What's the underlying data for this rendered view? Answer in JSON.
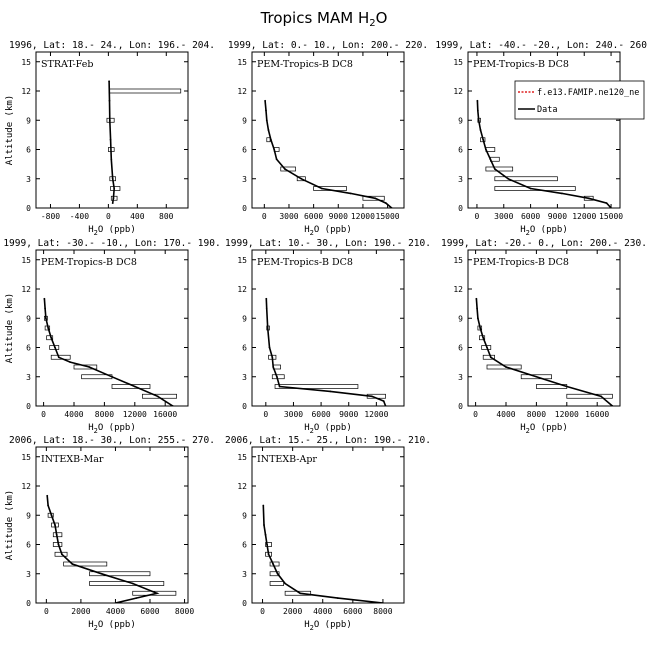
{
  "figure": {
    "title": "Tropics MAM H",
    "title_sub": "2",
    "title_end": "O"
  },
  "legend": {
    "entries": [
      {
        "label": "f.e13.FAMIP.ne120_ne",
        "color": "#e02020",
        "dashed": true
      },
      {
        "label": "Data",
        "color": "#000000",
        "dashed": false
      }
    ],
    "placement": "top-right of panel 3"
  },
  "chart_data": [
    {
      "type": "line",
      "title": "1996, Lat: 18.- 24., Lon: 196.- 204.",
      "label": "STRAT-Feb",
      "xlabel": "H2O (ppb)",
      "ylabel": "Altitude (km)",
      "xlim": [
        -1000,
        1100
      ],
      "ylim": [
        0,
        16
      ],
      "xticks": [
        -800,
        -400,
        0,
        400,
        800
      ],
      "yticks": [
        0,
        3,
        6,
        9,
        12,
        15
      ],
      "profile": [
        [
          60,
          0.5
        ],
        [
          70,
          1
        ],
        [
          80,
          2
        ],
        [
          60,
          3
        ],
        [
          40,
          5
        ],
        [
          30,
          7
        ],
        [
          20,
          9
        ],
        [
          15,
          11
        ],
        [
          10,
          13
        ]
      ],
      "ranges": [
        [
          10,
          1000,
          12
        ],
        [
          -20,
          80,
          9
        ],
        [
          0,
          80,
          6
        ],
        [
          20,
          100,
          3
        ],
        [
          30,
          160,
          2
        ],
        [
          40,
          120,
          1
        ]
      ]
    },
    {
      "type": "line",
      "title": "1999, Lat: 0.- 10., Lon: 200.- 220.",
      "label": "PEM-Tropics-B DC8",
      "xlabel": "H2O (ppb)",
      "ylabel": "",
      "xlim": [
        -1500,
        17000
      ],
      "ylim": [
        0,
        16
      ],
      "xticks": [
        0,
        3000,
        6000,
        9000,
        12000,
        15000
      ],
      "yticks": [
        0,
        3,
        6,
        9,
        12,
        15
      ],
      "profile": [
        [
          15500,
          0
        ],
        [
          14800,
          0.5
        ],
        [
          13500,
          1
        ],
        [
          10500,
          1.5
        ],
        [
          7000,
          2
        ],
        [
          4500,
          3
        ],
        [
          2500,
          4
        ],
        [
          1500,
          5
        ],
        [
          1200,
          6
        ],
        [
          800,
          7
        ],
        [
          500,
          8
        ],
        [
          300,
          9
        ],
        [
          200,
          10
        ],
        [
          100,
          11
        ]
      ],
      "ranges": [
        [
          12000,
          14600,
          1
        ],
        [
          6000,
          10000,
          2
        ],
        [
          4000,
          5000,
          3
        ],
        [
          2000,
          3800,
          4
        ],
        [
          1200,
          1800,
          6
        ],
        [
          300,
          700,
          7
        ]
      ]
    },
    {
      "type": "line",
      "title": "1999, Lat: -40.- -20., Lon: 240.- 260.",
      "label": "PEM-Tropics-B DC8",
      "xlabel": "H2O (ppb)",
      "ylabel": "",
      "xlim": [
        -1000,
        16000
      ],
      "ylim": [
        0,
        16
      ],
      "xticks": [
        0,
        3000,
        6000,
        9000,
        12000,
        15000
      ],
      "yticks": [
        0,
        3,
        6,
        9,
        12,
        15
      ],
      "profile": [
        [
          15000,
          0
        ],
        [
          14500,
          0.5
        ],
        [
          12500,
          1
        ],
        [
          9500,
          1.5
        ],
        [
          6000,
          2
        ],
        [
          3500,
          3
        ],
        [
          2000,
          4
        ],
        [
          1500,
          5
        ],
        [
          1000,
          6
        ],
        [
          700,
          7
        ],
        [
          400,
          8
        ],
        [
          200,
          9
        ],
        [
          100,
          10
        ],
        [
          50,
          11
        ]
      ],
      "ranges": [
        [
          12000,
          13000,
          1
        ],
        [
          2000,
          11000,
          2
        ],
        [
          2000,
          9000,
          3
        ],
        [
          1000,
          4000,
          4
        ],
        [
          1500,
          2500,
          5
        ],
        [
          1000,
          2000,
          6
        ],
        [
          400,
          900,
          7
        ],
        [
          100,
          400,
          9
        ]
      ]
    },
    {
      "type": "line",
      "title": "1999, Lat: -30.- -10., Lon: 170.- 190.",
      "label": "PEM-Tropics-B DC8",
      "xlabel": "H2O (ppb)",
      "ylabel": "Altitude (km)",
      "xlim": [
        -1000,
        19000
      ],
      "ylim": [
        0,
        16
      ],
      "xticks": [
        0,
        4000,
        8000,
        12000,
        16000
      ],
      "yticks": [
        0,
        3,
        6,
        9,
        12,
        15
      ],
      "profile": [
        [
          17000,
          0
        ],
        [
          15000,
          1
        ],
        [
          12000,
          2
        ],
        [
          9000,
          3
        ],
        [
          6000,
          4
        ],
        [
          3500,
          4.5
        ],
        [
          2000,
          5
        ],
        [
          1500,
          6
        ],
        [
          1000,
          7
        ],
        [
          600,
          8
        ],
        [
          300,
          9
        ],
        [
          200,
          10
        ],
        [
          100,
          11
        ]
      ],
      "ranges": [
        [
          13000,
          17500,
          1
        ],
        [
          9000,
          14000,
          2
        ],
        [
          5000,
          9000,
          3
        ],
        [
          4000,
          7000,
          4
        ],
        [
          1000,
          3500,
          5
        ],
        [
          800,
          2000,
          6
        ],
        [
          400,
          1200,
          7
        ],
        [
          200,
          800,
          8
        ],
        [
          100,
          500,
          9
        ]
      ]
    },
    {
      "type": "line",
      "title": "1999, Lat: 10.- 30., Lon: 190.- 210.",
      "label": "PEM-Tropics-B DC8",
      "xlabel": "H2O (ppb)",
      "ylabel": "",
      "xlim": [
        -1500,
        15000
      ],
      "ylim": [
        0,
        16
      ],
      "xticks": [
        0,
        3000,
        6000,
        9000,
        12000
      ],
      "yticks": [
        0,
        3,
        6,
        9,
        12,
        15
      ],
      "profile": [
        [
          13000,
          0
        ],
        [
          12800,
          0.5
        ],
        [
          11500,
          1
        ],
        [
          7000,
          1.5
        ],
        [
          1500,
          2
        ],
        [
          1200,
          3
        ],
        [
          800,
          4
        ],
        [
          700,
          5
        ],
        [
          400,
          6
        ],
        [
          200,
          8
        ],
        [
          100,
          10
        ],
        [
          50,
          11
        ]
      ],
      "ranges": [
        [
          11000,
          13000,
          1
        ],
        [
          1000,
          10000,
          2
        ],
        [
          700,
          2000,
          3
        ],
        [
          800,
          1600,
          4
        ],
        [
          300,
          1100,
          5
        ],
        [
          100,
          400,
          8
        ]
      ]
    },
    {
      "type": "line",
      "title": "1999, Lat: -20.- 0., Lon: 200.- 230.",
      "label": "PEM-Tropics-B DC8",
      "xlabel": "H2O (ppb)",
      "ylabel": "",
      "xlim": [
        -1000,
        19000
      ],
      "ylim": [
        0,
        16
      ],
      "xticks": [
        0,
        4000,
        8000,
        12000,
        16000
      ],
      "yticks": [
        0,
        3,
        6,
        9,
        12,
        15
      ],
      "profile": [
        [
          18000,
          0
        ],
        [
          16500,
          1
        ],
        [
          12000,
          2
        ],
        [
          8000,
          3
        ],
        [
          4000,
          4
        ],
        [
          2000,
          5
        ],
        [
          1500,
          6
        ],
        [
          1000,
          7
        ],
        [
          600,
          8
        ],
        [
          300,
          9
        ],
        [
          200,
          10
        ],
        [
          100,
          11
        ]
      ],
      "ranges": [
        [
          12000,
          18000,
          1
        ],
        [
          8000,
          12000,
          2
        ],
        [
          6000,
          10000,
          3
        ],
        [
          1500,
          6000,
          4
        ],
        [
          1000,
          2500,
          5
        ],
        [
          800,
          2000,
          6
        ],
        [
          500,
          1200,
          7
        ],
        [
          300,
          800,
          8
        ]
      ]
    },
    {
      "type": "line",
      "title": "2006, Lat: 18.- 30., Lon: 255.- 270.",
      "label": "INTEXB-Mar",
      "xlabel": "H2O (ppb)",
      "ylabel": "Altitude (km)",
      "xlim": [
        -600,
        8200
      ],
      "ylim": [
        0,
        16
      ],
      "xticks": [
        0,
        2000,
        4000,
        6000,
        8000
      ],
      "yticks": [
        0,
        3,
        6,
        9,
        12,
        15
      ],
      "profile": [
        [
          4000,
          0
        ],
        [
          5200,
          0.5
        ],
        [
          6400,
          1
        ],
        [
          5000,
          2
        ],
        [
          3200,
          3
        ],
        [
          1500,
          4
        ],
        [
          900,
          5
        ],
        [
          700,
          6
        ],
        [
          600,
          7
        ],
        [
          500,
          8
        ],
        [
          300,
          9
        ],
        [
          100,
          10
        ],
        [
          50,
          11
        ]
      ],
      "ranges": [
        [
          5000,
          7500,
          1
        ],
        [
          2500,
          6800,
          2
        ],
        [
          2500,
          6000,
          3
        ],
        [
          1000,
          3500,
          4
        ],
        [
          500,
          1200,
          5
        ],
        [
          400,
          900,
          6
        ],
        [
          400,
          900,
          7
        ],
        [
          300,
          700,
          8
        ],
        [
          100,
          400,
          9
        ]
      ]
    },
    {
      "type": "line",
      "title": "2006, Lat: 15.- 25., Lon: 190.- 210.",
      "label": "INTEXB-Apr",
      "xlabel": "H2O (ppb)",
      "ylabel": "",
      "xlim": [
        -700,
        9400
      ],
      "ylim": [
        0,
        16
      ],
      "xticks": [
        0,
        2000,
        4000,
        6000,
        8000
      ],
      "yticks": [
        0,
        3,
        6,
        9,
        12,
        15
      ],
      "profile": [
        [
          8000,
          0
        ],
        [
          5000,
          0.5
        ],
        [
          2500,
          1
        ],
        [
          1500,
          2
        ],
        [
          1000,
          3
        ],
        [
          700,
          4
        ],
        [
          400,
          5
        ],
        [
          300,
          6
        ],
        [
          200,
          7
        ],
        [
          100,
          8
        ],
        [
          50,
          10
        ]
      ],
      "ranges": [
        [
          1500,
          3200,
          1
        ],
        [
          500,
          1400,
          2
        ],
        [
          500,
          1100,
          3
        ],
        [
          500,
          1100,
          4
        ],
        [
          200,
          600,
          5
        ],
        [
          200,
          600,
          6
        ]
      ]
    }
  ]
}
